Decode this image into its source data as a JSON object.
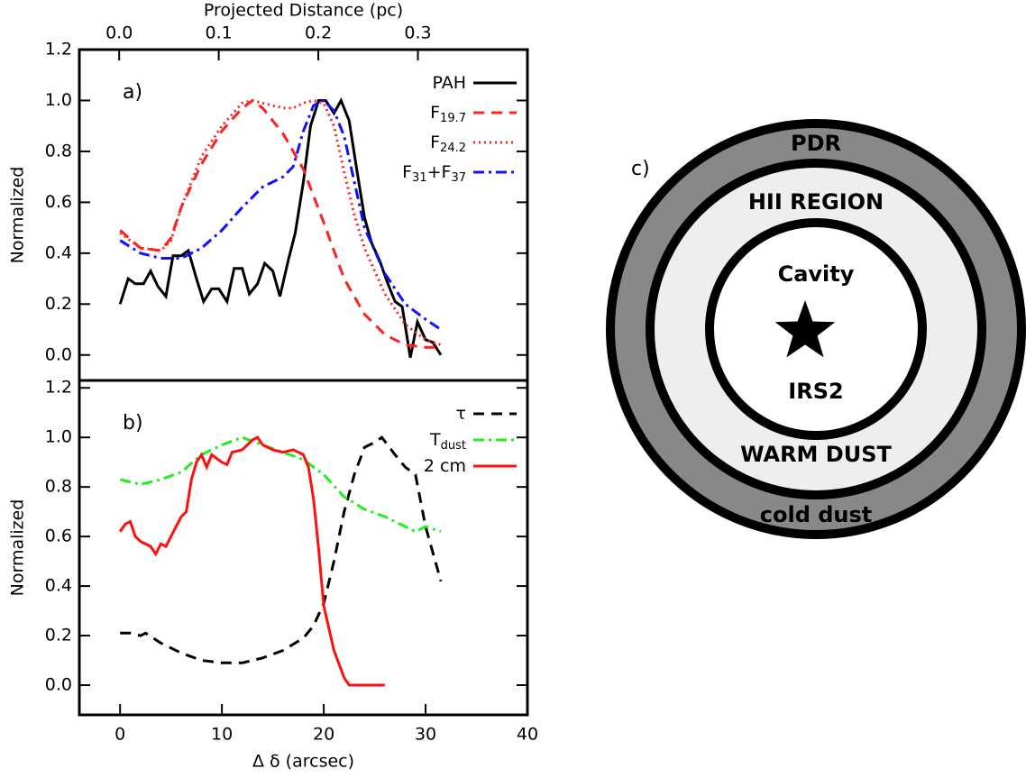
{
  "chart_data": [
    {
      "type": "line",
      "panel_label": "a)",
      "ylabel": "Normalized",
      "x2label": "Projected Distance (pc)",
      "xlim": [
        -4,
        40
      ],
      "ylim": [
        -0.1,
        1.2
      ],
      "yticks": [
        {
          "value": 0,
          "label": "0.0"
        },
        0.2,
        0.4,
        0.6,
        0.8,
        {
          "value": 1,
          "label": "1.0"
        },
        1.2
      ],
      "x2lim": [
        -0.04,
        0.41
      ],
      "x2ticks": [
        {
          "value": 0,
          "label": "0.0"
        },
        0.1,
        0.2,
        0.3
      ],
      "legend": "upper right",
      "series": [
        {
          "name": [
            {
              "text": "PAH"
            }
          ],
          "color": "#000000",
          "linestyle": "solid",
          "x": [
            0,
            0.8,
            1.5,
            2.3,
            3,
            3.7,
            4.5,
            5.2,
            6,
            6.7,
            7.5,
            8.2,
            9,
            9.7,
            10.5,
            11.2,
            12,
            12.7,
            13.5,
            14.2,
            15,
            15.7,
            16.5,
            17.2,
            18,
            18.7,
            19.5,
            20.2,
            21,
            21.7,
            22.5,
            23.2,
            24,
            24.7,
            25.5,
            26.2,
            27,
            27.7,
            28.5,
            29.2,
            30,
            30.7,
            31.5
          ],
          "values": [
            0.2,
            0.3,
            0.28,
            0.28,
            0.33,
            0.27,
            0.23,
            0.39,
            0.39,
            0.41,
            0.3,
            0.21,
            0.26,
            0.26,
            0.21,
            0.34,
            0.34,
            0.24,
            0.28,
            0.36,
            0.33,
            0.23,
            0.37,
            0.48,
            0.68,
            0.9,
            1.0,
            1.0,
            0.95,
            1.0,
            0.92,
            0.74,
            0.54,
            0.44,
            0.37,
            0.29,
            0.21,
            0.19,
            -0.01,
            0.13,
            0.06,
            0.05,
            0.0
          ]
        },
        {
          "name": [
            {
              "text": "F"
            },
            {
              "text": "19.7",
              "sub": true
            }
          ],
          "color": "#ff2020",
          "linestyle": "dashed",
          "x": [
            0,
            2,
            4,
            5,
            6,
            8,
            10,
            12,
            13,
            14,
            16,
            18,
            20,
            22,
            24,
            26,
            28,
            30,
            31.5
          ],
          "values": [
            0.49,
            0.42,
            0.41,
            0.46,
            0.58,
            0.75,
            0.88,
            0.97,
            1.0,
            0.97,
            0.87,
            0.73,
            0.52,
            0.3,
            0.16,
            0.08,
            0.04,
            0.03,
            0.03
          ]
        },
        {
          "name": [
            {
              "text": "F"
            },
            {
              "text": "24.2",
              "sub": true
            }
          ],
          "color": "#ff2020",
          "linestyle": "dotted",
          "x": [
            0,
            2,
            4,
            5,
            6,
            8,
            10,
            12,
            13,
            14,
            16,
            17,
            18,
            19,
            20,
            21,
            22,
            23,
            24,
            26,
            28,
            30,
            31.5
          ],
          "values": [
            0.48,
            0.42,
            0.41,
            0.45,
            0.58,
            0.78,
            0.9,
            0.99,
            1.0,
            0.99,
            0.97,
            0.97,
            0.99,
            1.0,
            0.99,
            0.9,
            0.72,
            0.55,
            0.42,
            0.24,
            0.12,
            0.06,
            0.04
          ]
        },
        {
          "name": [
            {
              "text": "F"
            },
            {
              "text": "31",
              "sub": true
            },
            {
              "text": "+F"
            },
            {
              "text": "37",
              "sub": true
            }
          ],
          "color": "#1010ff",
          "linestyle": "dashdot",
          "x": [
            0,
            2,
            4,
            6,
            8,
            10,
            12,
            14,
            16,
            17,
            18,
            19,
            20,
            21,
            22,
            23,
            24,
            26,
            28,
            30,
            31.5
          ],
          "values": [
            0.45,
            0.4,
            0.38,
            0.38,
            0.42,
            0.49,
            0.58,
            0.66,
            0.7,
            0.74,
            0.88,
            0.98,
            1.0,
            0.96,
            0.86,
            0.68,
            0.5,
            0.32,
            0.2,
            0.14,
            0.1
          ]
        }
      ]
    },
    {
      "type": "line",
      "panel_label": "b)",
      "ylabel": "Normalized",
      "xlabel": "Δ δ (arcsec)",
      "xlim": [
        -4,
        40
      ],
      "ylim": [
        -0.12,
        1.23
      ],
      "xticks": [
        0,
        10,
        20,
        30,
        40
      ],
      "yticks": [
        {
          "value": 0,
          "label": "0.0"
        },
        0.2,
        0.4,
        0.6,
        0.8,
        {
          "value": 1,
          "label": "1.0"
        },
        1.2
      ],
      "legend": "upper right",
      "series": [
        {
          "name": [
            {
              "text": "τ"
            }
          ],
          "color": "#000000",
          "linestyle": "dashed",
          "x": [
            0,
            1,
            2,
            2.5,
            4,
            6,
            8,
            10,
            12,
            14,
            16,
            18,
            19,
            20,
            21,
            22,
            23,
            24,
            25,
            25.7,
            27,
            28,
            29,
            30,
            31.5
          ],
          "values": [
            0.21,
            0.21,
            0.2,
            0.21,
            0.17,
            0.13,
            0.1,
            0.09,
            0.09,
            0.11,
            0.14,
            0.19,
            0.24,
            0.33,
            0.5,
            0.7,
            0.85,
            0.96,
            0.98,
            1.0,
            0.93,
            0.88,
            0.85,
            0.64,
            0.42
          ]
        },
        {
          "name": [
            {
              "text": "T"
            },
            {
              "text": "dust",
              "sub": true
            }
          ],
          "color": "#22ee22",
          "linestyle": "dashdot",
          "x": [
            0,
            2,
            4,
            6,
            8,
            10,
            12,
            14,
            16,
            18,
            20,
            22,
            24,
            26,
            28,
            29,
            30,
            31.5
          ],
          "values": [
            0.83,
            0.81,
            0.83,
            0.86,
            0.93,
            0.97,
            1.0,
            0.97,
            0.94,
            0.91,
            0.85,
            0.76,
            0.71,
            0.68,
            0.64,
            0.62,
            0.64,
            0.62
          ]
        },
        {
          "name": [
            {
              "text": "2 cm"
            }
          ],
          "color": "#ff1010",
          "linestyle": "solid",
          "x": [
            0,
            0.5,
            1,
            1.5,
            2,
            3,
            3.5,
            4,
            4.5,
            5,
            5.5,
            6,
            6.5,
            7,
            7.5,
            8,
            8.5,
            9,
            10,
            10.5,
            11,
            12,
            12.5,
            13,
            13.5,
            14,
            15,
            16,
            17,
            18,
            18.5,
            19,
            19.5,
            20,
            21,
            22,
            22.5,
            26
          ],
          "values": [
            0.62,
            0.65,
            0.66,
            0.6,
            0.58,
            0.56,
            0.53,
            0.57,
            0.56,
            0.6,
            0.64,
            0.68,
            0.7,
            0.83,
            0.9,
            0.93,
            0.88,
            0.93,
            0.9,
            0.89,
            0.94,
            0.95,
            0.97,
            0.99,
            1.0,
            0.97,
            0.95,
            0.94,
            0.95,
            0.93,
            0.88,
            0.75,
            0.55,
            0.32,
            0.14,
            0.03,
            0.0,
            0.0
          ]
        }
      ]
    }
  ],
  "diagram": {
    "label": "c)",
    "rings": {
      "outer": "PDR",
      "middle": "HII REGION",
      "inner": "Cavity"
    },
    "star": "IRS2",
    "warm": "WARM DUST",
    "cold": "cold dust"
  }
}
